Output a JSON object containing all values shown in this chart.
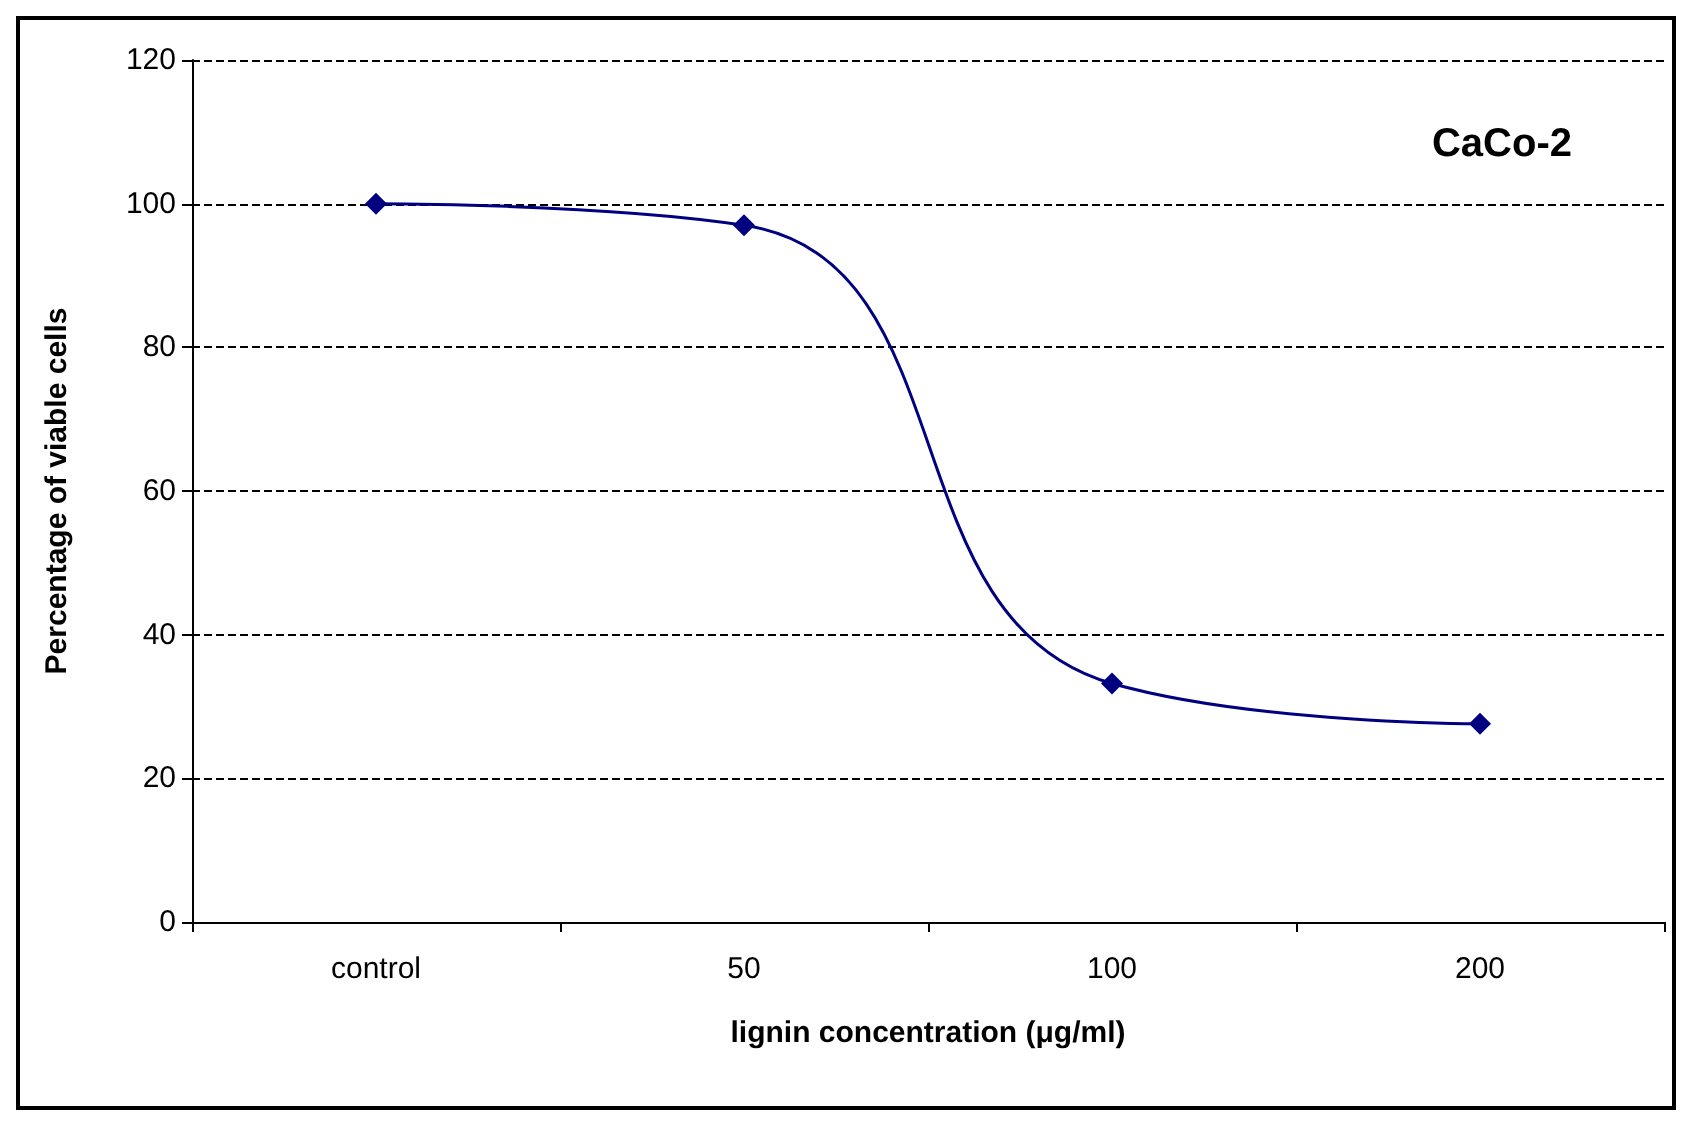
{
  "chart_data": {
    "type": "line",
    "xlabel": "lignin concentration (μg/ml)",
    "ylabel": "Percentage of viable cells",
    "annotations": [
      "CaCo-2"
    ],
    "categories": [
      "control",
      "50",
      "100",
      "200"
    ],
    "series": [
      {
        "color": "#000080",
        "values": [
          100,
          97,
          33.2,
          27.6
        ]
      }
    ],
    "ylim": [
      0,
      120
    ],
    "yticks": [
      0,
      20,
      40,
      60,
      80,
      100,
      120
    ],
    "grid": "y",
    "marker": "diamond",
    "line_style": "solid"
  }
}
